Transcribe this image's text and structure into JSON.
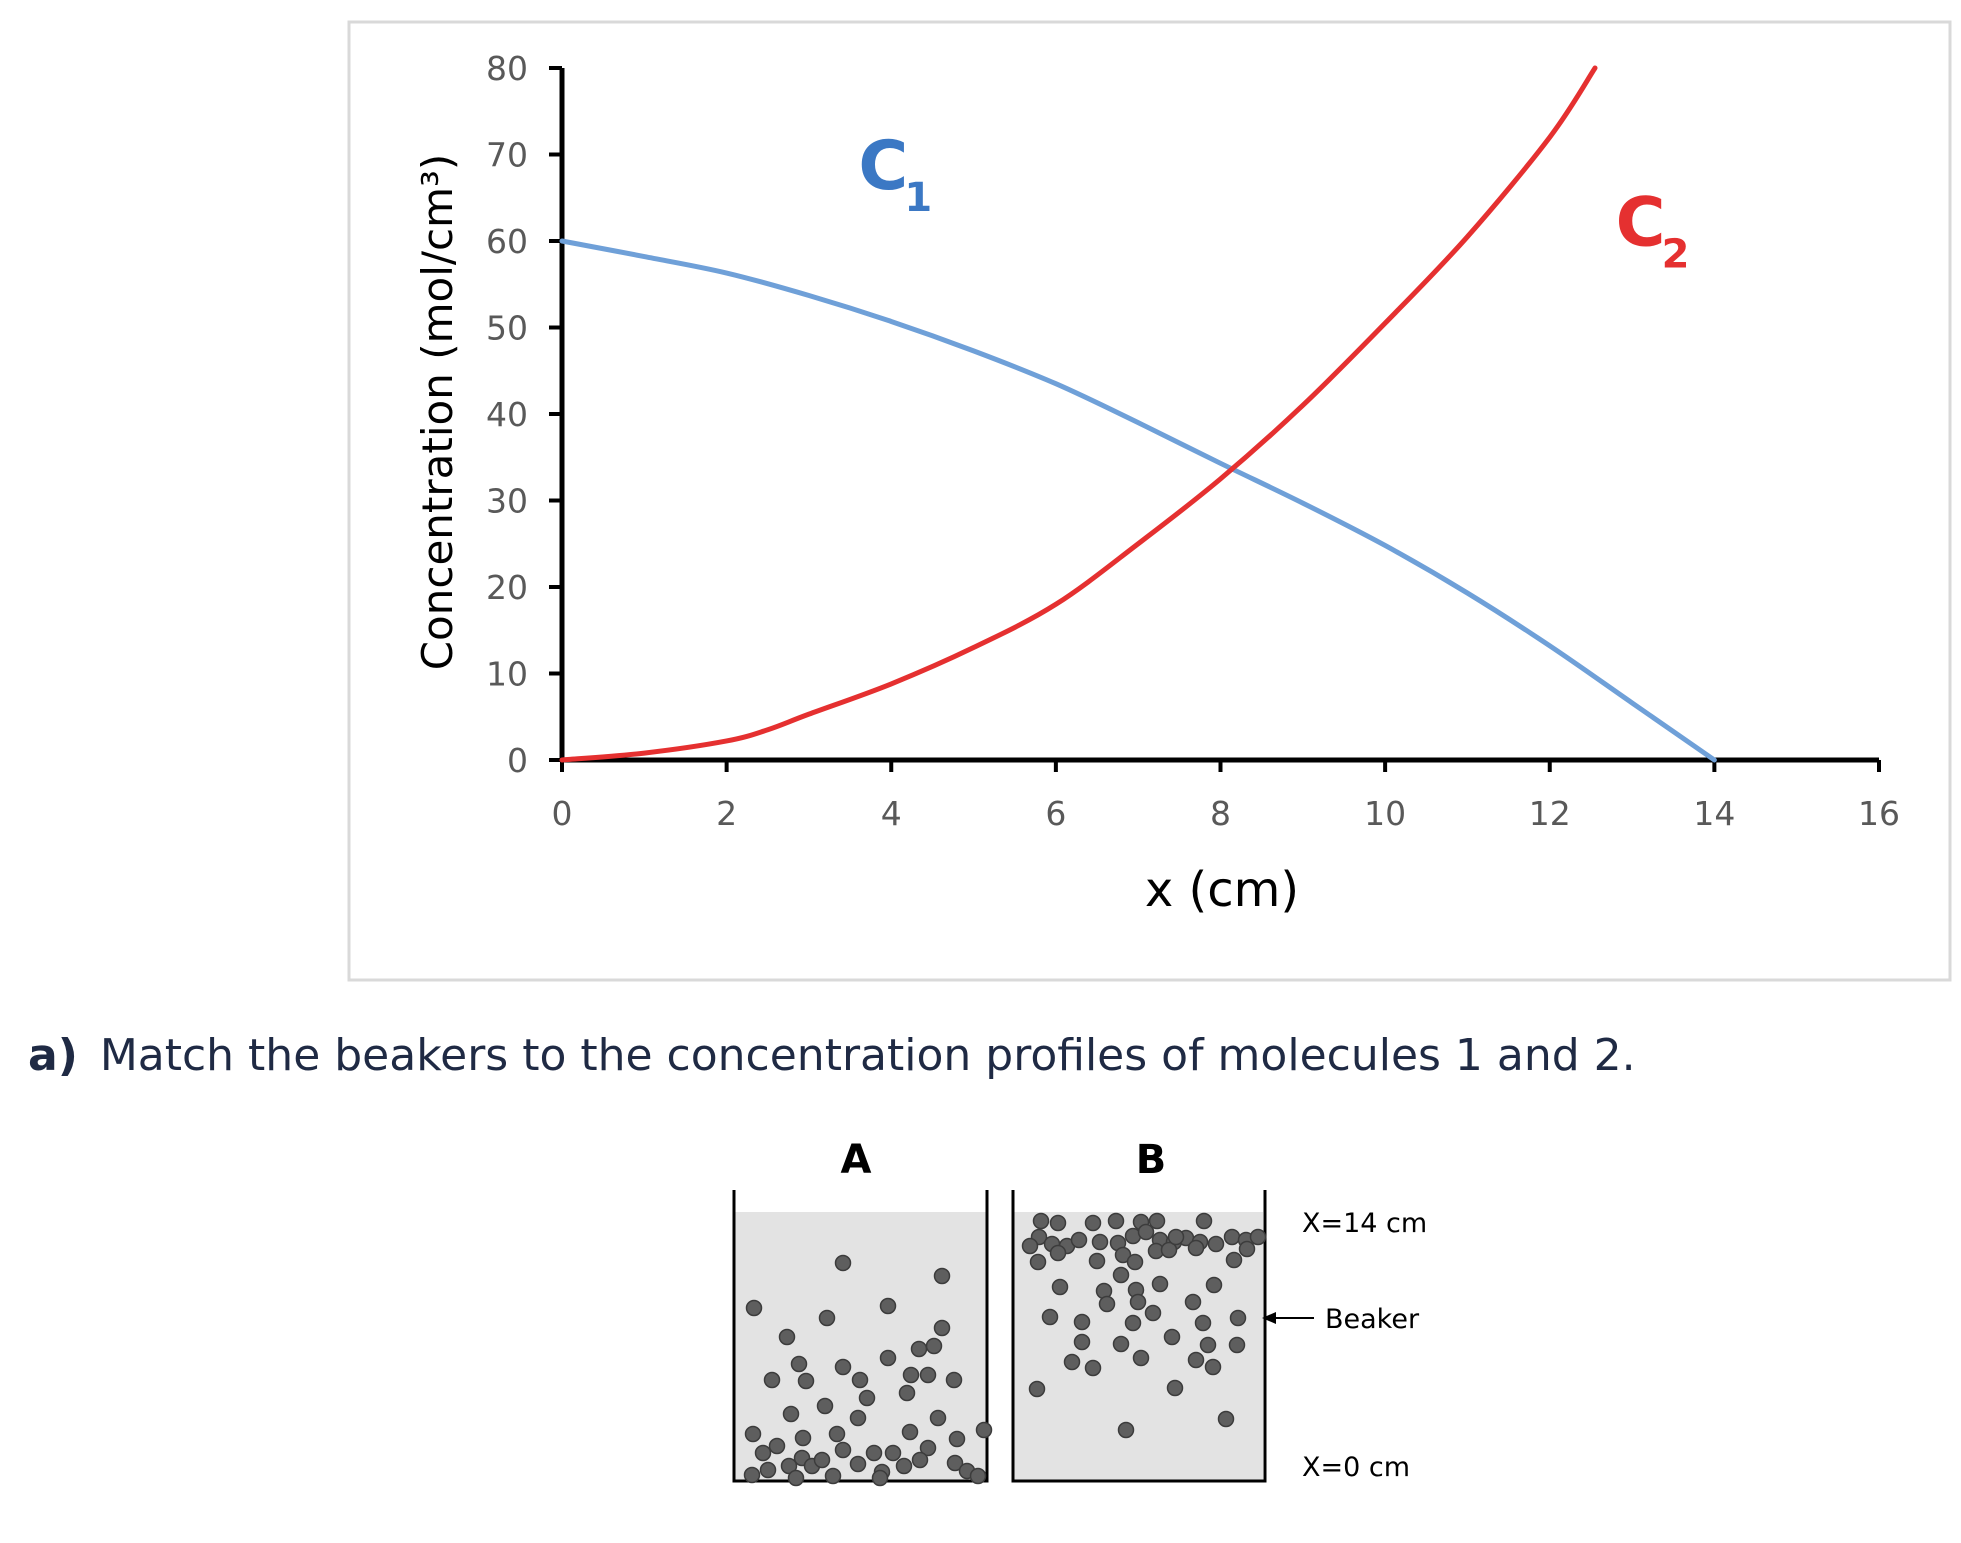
{
  "chart_data": {
    "type": "line",
    "xlabel": "x (cm)",
    "ylabel": "Concentration (mol/cm³)",
    "xlim": [
      0,
      16
    ],
    "ylim": [
      0,
      80
    ],
    "xticks": [
      "0",
      "2",
      "4",
      "6",
      "8",
      "10",
      "12",
      "14",
      "16"
    ],
    "yticks": [
      "0",
      "10",
      "20",
      "30",
      "40",
      "50",
      "60",
      "70",
      "80"
    ],
    "grid": false,
    "series": [
      {
        "name": "C",
        "subscript": "1",
        "color": "#6fa0d8",
        "label_color": "#3b78c4",
        "x": [
          0,
          1,
          2,
          3,
          4,
          5,
          6,
          7,
          8,
          9,
          10,
          11,
          12,
          13,
          14
        ],
        "values": [
          60,
          58.2,
          56.3,
          53.7,
          50.7,
          47.3,
          43.5,
          39.0,
          34.3,
          29.7,
          24.8,
          19.3,
          13.2,
          6.6,
          0
        ]
      },
      {
        "name": "C",
        "subscript": "2",
        "color": "#e53030",
        "label_color": "#e53030",
        "x": [
          0,
          1,
          2,
          2.5,
          3,
          4,
          5,
          6,
          7,
          8,
          9,
          10,
          11,
          12,
          12.55
        ],
        "values": [
          0,
          0.8,
          2.2,
          3.5,
          5.3,
          8.8,
          13.0,
          18.0,
          25.0,
          32.5,
          41.0,
          50.5,
          60.5,
          72.0,
          80
        ]
      }
    ]
  },
  "question": {
    "label": "a)",
    "text": "Match the beakers to the concentration profiles of molecules 1 and 2."
  },
  "beakers": {
    "a_label": "A",
    "b_label": "B",
    "top_label": "X=14 cm",
    "pointer_label": "Beaker",
    "bottom_label": "X=0 cm"
  },
  "colors": {
    "axis": "#000000",
    "tick_text": "#595959",
    "frame": "#d9d9d9",
    "liquid": "#e3e3e3",
    "molecule": "#5e5e5e",
    "molecule_stroke": "#3c3c3c"
  }
}
